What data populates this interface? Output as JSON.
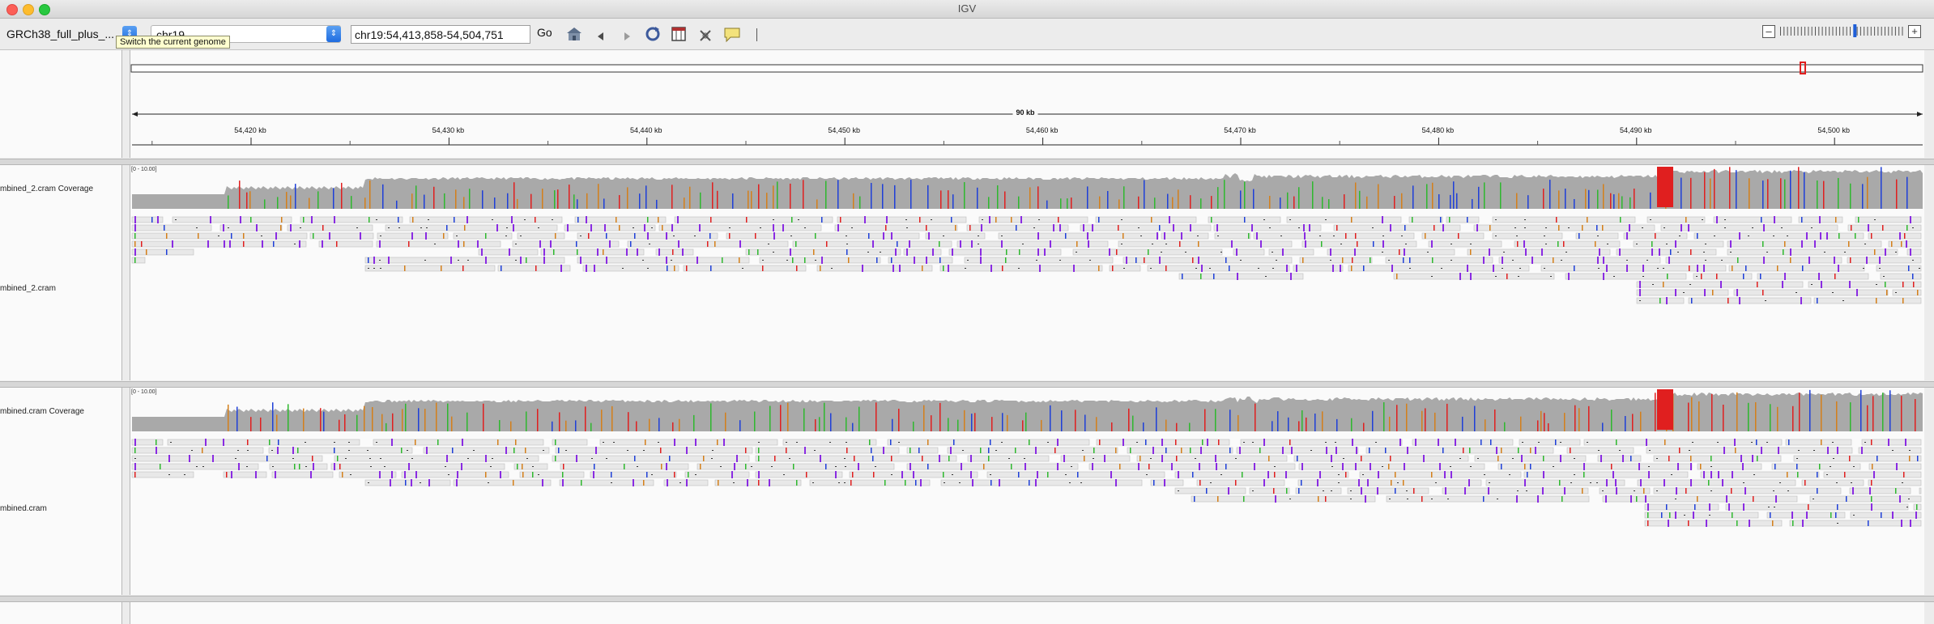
{
  "window": {
    "title": "IGV"
  },
  "toolbar": {
    "genome_value": "GRCh38_full_plus_...",
    "chromosome_value": "chr19",
    "locus_value": "chr19:54,413,858-54,504,751",
    "go_label": "Go",
    "genome_tooltip": "Switch the current genome",
    "icons": [
      "home-icon",
      "back-icon",
      "forward-icon",
      "refresh-icon",
      "roi-icon",
      "clear-icon",
      "popup-info-icon"
    ]
  },
  "zoom": {
    "minus": "–",
    "plus": "+",
    "level_fraction": 0.6
  },
  "ruler": {
    "span_label": "90 kb",
    "ticks": [
      "54,420 kb",
      "54,430 kb",
      "54,440 kb",
      "54,450 kb",
      "54,460 kb",
      "54,470 kb",
      "54,480 kb",
      "54,490 kb",
      "54,500 kb"
    ]
  },
  "tracks": [
    {
      "coverage_label": "mbined_2.cram Coverage",
      "range": "[0 - 10.00]",
      "alignment_label": "mbined_2.cram"
    },
    {
      "coverage_label": "mbined.cram Coverage",
      "range": "[0 - 10.00]",
      "alignment_label": "mbined.cram"
    }
  ],
  "colors": {
    "coverage": "#a9a9a9",
    "read": "#e8e8e8",
    "insertion": "#8a2be2",
    "mismatch_A": "#2eb82e",
    "mismatch_C": "#1e3fd8",
    "mismatch_G": "#d47f1a",
    "mismatch_T": "#e01f1f",
    "region_marker": "#e01f1f"
  }
}
